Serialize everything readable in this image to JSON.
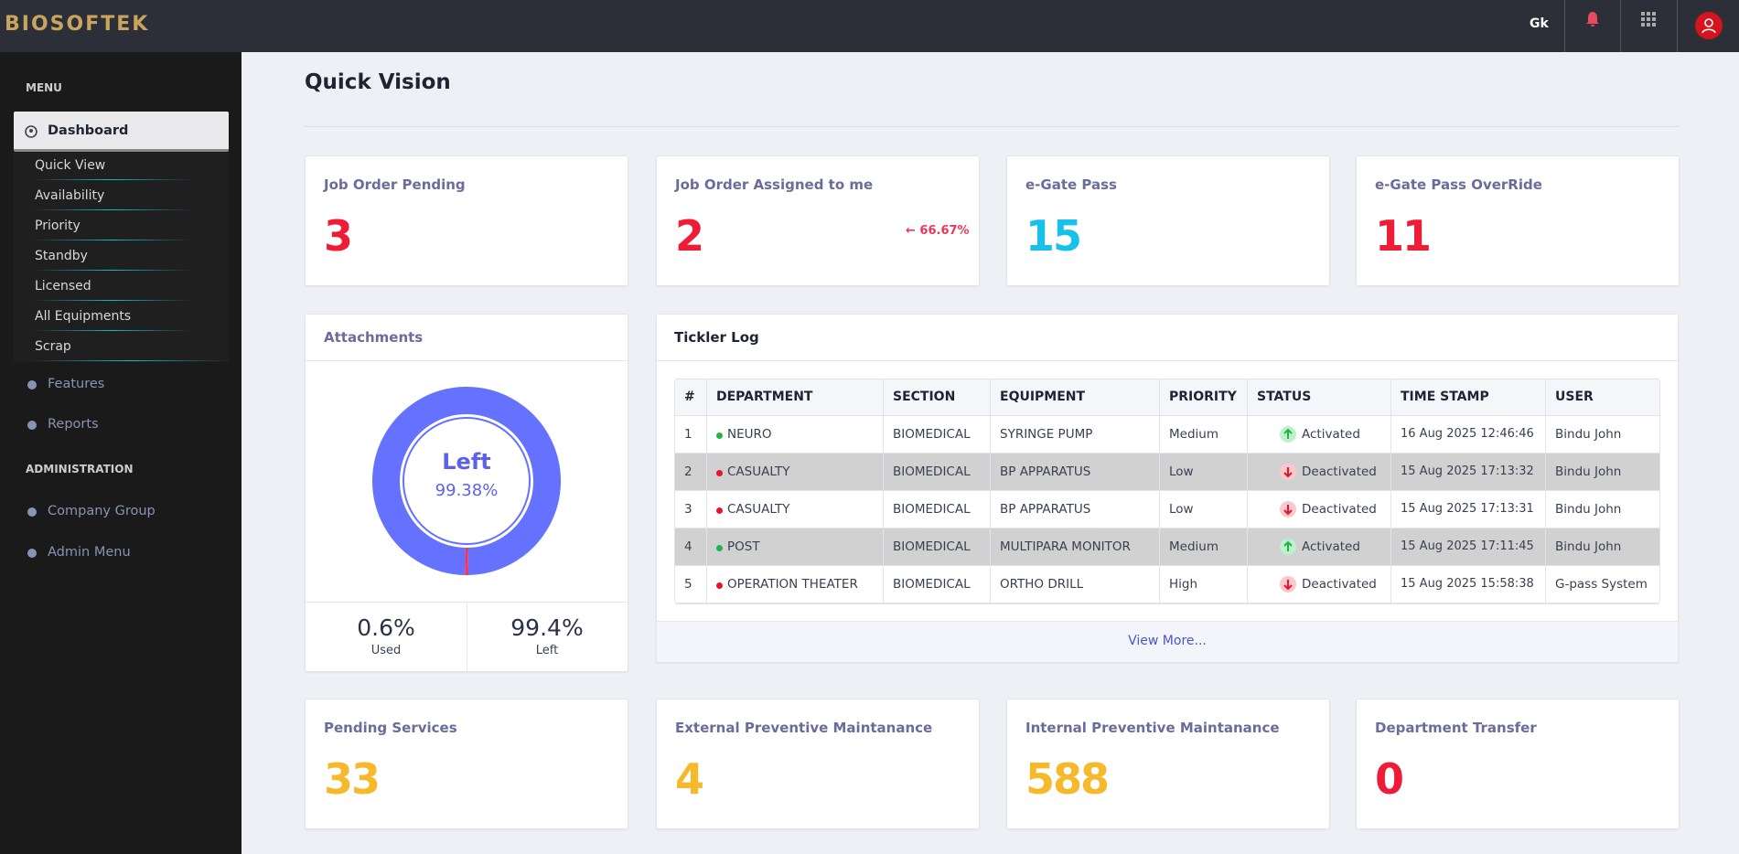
{
  "header": {
    "logo": "BIOSOFTEK",
    "lang": "Gk"
  },
  "sidebar": {
    "menu_heading": "MENU",
    "active": "Dashboard",
    "submenu": [
      "Quick View",
      "Availability",
      "Priority",
      "Standby",
      "Licensed",
      "All Equipments",
      "Scrap"
    ],
    "items": [
      "Features",
      "Reports"
    ],
    "admin_heading": "ADMINISTRATION",
    "admin_items": [
      "Company Group",
      "Admin Menu"
    ]
  },
  "page": {
    "title": "Quick Vision"
  },
  "cards": [
    {
      "title": "Job Order Pending",
      "value": 3,
      "color": "#ee1c36"
    },
    {
      "title": "Job Order Assigned to me",
      "value": 2,
      "color": "#ee1c36",
      "change": "66.67%"
    },
    {
      "title": "e-Gate Pass",
      "value": 15,
      "color": "#18c1ea"
    },
    {
      "title": "e-Gate Pass OverRide",
      "value": 11,
      "color": "#ee1c36"
    }
  ],
  "attachments": {
    "title": "Attachments",
    "center_name": "Left",
    "center_value_label": "99.38%",
    "names": [
      "Used",
      "Left"
    ],
    "values": [
      0.6,
      99.4
    ],
    "value_labels": [
      "0.6%",
      "99.4%"
    ],
    "colors": [
      "#f0365a",
      "#6571ff"
    ]
  },
  "tickler": {
    "title": "Tickler Log",
    "columns": [
      "#",
      "DEPARTMENT",
      "SECTION",
      "EQUIPMENT",
      "PRIORITY",
      "STATUS",
      "TIME STAMP",
      "USER"
    ],
    "rows": [
      {
        "color": "#22b34a",
        "cells": [
          1,
          "NEURO",
          "BIOMEDICAL",
          "SYRINGE PUMP",
          "Medium",
          "Activated",
          "16 Aug 2025 12:46:46",
          "Bindu John"
        ]
      },
      {
        "color": "#e5142a",
        "cells": [
          2,
          "CASUALTY",
          "BIOMEDICAL",
          "BP APPARATUS",
          "Low",
          "Deactivated",
          "15 Aug 2025 17:13:32",
          "Bindu John"
        ]
      },
      {
        "color": "#e5142a",
        "cells": [
          3,
          "CASUALTY",
          "BIOMEDICAL",
          "BP APPARATUS",
          "Low",
          "Deactivated",
          "15 Aug 2025 17:13:31",
          "Bindu John"
        ]
      },
      {
        "color": "#22b34a",
        "cells": [
          4,
          "POST",
          "BIOMEDICAL",
          "MULTIPARA MONITOR",
          "Medium",
          "Activated",
          "15 Aug 2025 17:11:45",
          "Bindu John"
        ]
      },
      {
        "color": "#e5142a",
        "cells": [
          5,
          "OPERATION THEATER",
          "BIOMEDICAL",
          "ORTHO DRILL",
          "High",
          "Deactivated",
          "15 Aug 2025 15:58:38",
          "G-pass System"
        ]
      }
    ],
    "footer": "View More..."
  },
  "bottom_cards": [
    {
      "title": "Pending Services",
      "value": 33,
      "color": "#f6b92b"
    },
    {
      "title": "External Preventive Maintanance",
      "value": 4,
      "color": "#f6b92b"
    },
    {
      "title": "Internal Preventive Maintanance",
      "value": 588,
      "color": "#f6b92b"
    },
    {
      "title": "Department Transfer",
      "value": 0,
      "color": "#ee1c36"
    }
  ]
}
